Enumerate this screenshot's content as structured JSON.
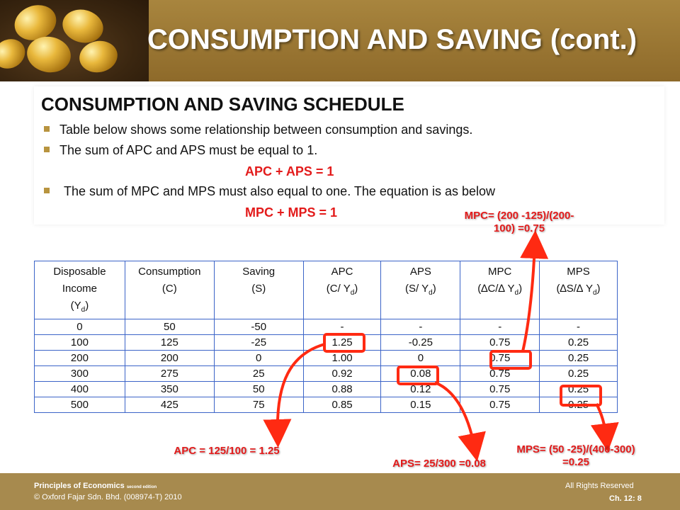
{
  "title": "CONSUMPTION AND SAVING (cont.)",
  "section": {
    "heading": "CONSUMPTION AND SAVING SCHEDULE",
    "bullet1": "Table below shows some relationship between consumption and savings.",
    "bullet2": "The sum of APC and APS must be equal to 1.",
    "eq1": "APC + APS = 1",
    "bullet3": "The sum of MPC and MPS must also equal to one. The equation is as below",
    "eq2": "MPC + MPS = 1"
  },
  "table": {
    "headers": {
      "income_line1": "Disposable",
      "income_line2": "Income",
      "income_line3": "(Y",
      "consumption_line1": "Consumption",
      "consumption_line2": "(C)",
      "saving_line1": "Saving",
      "saving_line2": "(S)",
      "apc_line1": "APC",
      "apc_line2": "(C/ Y",
      "aps_line1": "APS",
      "aps_line2": "(S/ Y",
      "mpc_line1": "MPC",
      "mpc_line2": "(∆C/∆ Y",
      "mps_line1": "MPS",
      "mps_line2": "(∆S/∆ Y",
      "sub_d": "d",
      "close_paren": ")"
    },
    "rows": [
      [
        "0",
        "50",
        "-50",
        "-",
        "-",
        "-",
        "-"
      ],
      [
        "100",
        "125",
        "-25",
        "1.25",
        "-0.25",
        "0.75",
        "0.25"
      ],
      [
        "200",
        "200",
        "0",
        "1.00",
        "0",
        "0.75",
        "0.25"
      ],
      [
        "300",
        "275",
        "25",
        "0.92",
        "0.08",
        "0.75",
        "0.25"
      ],
      [
        "400",
        "350",
        "50",
        "0.88",
        "0.12",
        "0.75",
        "0.25"
      ],
      [
        "500",
        "425",
        "75",
        "0.85",
        "0.15",
        "0.75",
        "0.25"
      ]
    ]
  },
  "callouts": {
    "mpc_line1": "MPC= (200 -125)/(200-",
    "mpc_line2": "100) =0.75",
    "apc": "APC = 125/100 = 1.25",
    "aps": "APS= 25/300 =0.08",
    "mps_line1": "MPS= (50 -25)/(400-300)",
    "mps_line2": "=0.25"
  },
  "footer": {
    "book_title": "Principles of Economics",
    "edition": "second edition",
    "publisher": "© Oxford Fajar Sdn. Bhd. (008974-T)  2010",
    "rights": "All Rights Reserved",
    "chapter": "Ch. 12: 8"
  },
  "colors": {
    "header_brown": "#8e6a2a",
    "accent_red": "#e31b1b",
    "table_border": "#3b64c8"
  }
}
